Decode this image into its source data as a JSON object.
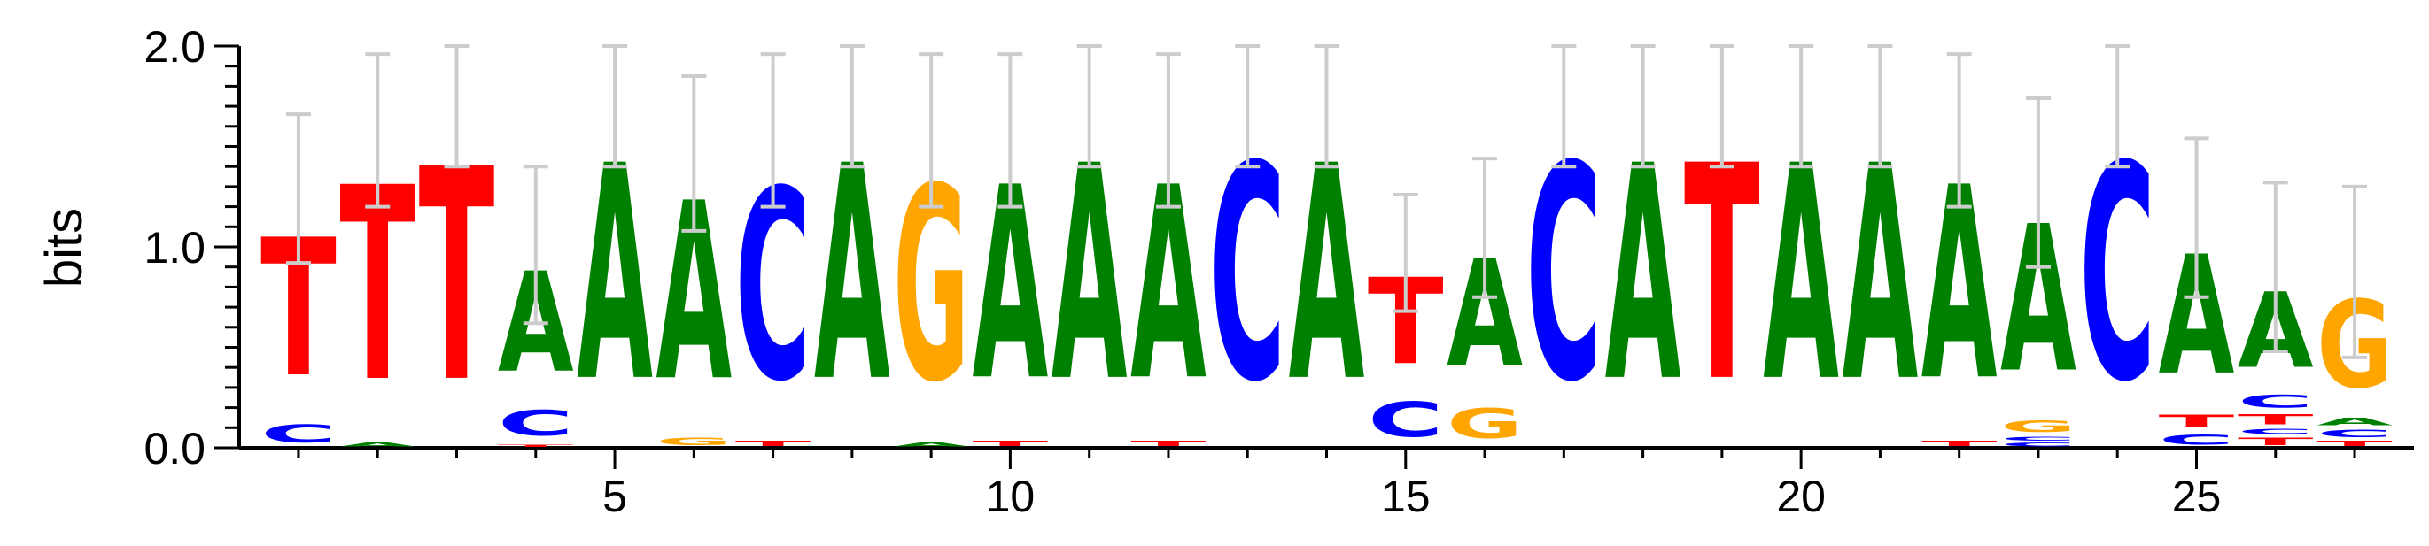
{
  "chart_data": {
    "type": "sequence-logo",
    "title": "",
    "xlabel": "",
    "ylabel": "bits",
    "ylim": [
      0,
      2.0
    ],
    "y_ticks": [
      "0.0",
      "1.0",
      "2.0"
    ],
    "x_ticks": [
      "5",
      "10",
      "15",
      "20",
      "25"
    ],
    "x_tick_values": [
      5,
      10,
      15,
      20,
      25
    ],
    "positions": 27,
    "grid": false,
    "colors": {
      "A": "#008000",
      "C": "#0000ff",
      "G": "#ffa500",
      "T": "#ff0000",
      "errorbar": "#cccccc"
    },
    "columns": [
      {
        "pos": 1,
        "stack": [
          [
            "C",
            0.14
          ],
          [
            "T",
            1.1
          ]
        ],
        "error": [
          0.92,
          1.66
        ]
      },
      {
        "pos": 2,
        "stack": [
          [
            "A",
            0.03
          ],
          [
            "T",
            1.55
          ]
        ],
        "error": [
          1.2,
          1.96
        ]
      },
      {
        "pos": 3,
        "stack": [
          [
            "T",
            1.7
          ]
        ],
        "error": [
          1.4,
          2.0
        ]
      },
      {
        "pos": 4,
        "stack": [
          [
            "T",
            0.02
          ],
          [
            "C",
            0.2
          ],
          [
            "A",
            0.8
          ]
        ],
        "error": [
          0.62,
          1.4
        ]
      },
      {
        "pos": 5,
        "stack": [
          [
            "A",
            1.72
          ]
        ],
        "error": [
          1.4,
          2.0
        ]
      },
      {
        "pos": 6,
        "stack": [
          [
            "G",
            0.06
          ],
          [
            "A",
            1.42
          ]
        ],
        "error": [
          1.08,
          1.85
        ]
      },
      {
        "pos": 7,
        "stack": [
          [
            "T",
            0.04
          ],
          [
            "C",
            1.52
          ]
        ],
        "error": [
          1.2,
          1.96
        ]
      },
      {
        "pos": 8,
        "stack": [
          [
            "A",
            1.72
          ]
        ],
        "error": [
          1.4,
          2.0
        ]
      },
      {
        "pos": 9,
        "stack": [
          [
            "A",
            0.03
          ],
          [
            "G",
            1.55
          ]
        ],
        "error": [
          1.2,
          1.96
        ]
      },
      {
        "pos": 10,
        "stack": [
          [
            "T",
            0.04
          ],
          [
            "A",
            1.54
          ]
        ],
        "error": [
          1.2,
          1.96
        ]
      },
      {
        "pos": 11,
        "stack": [
          [
            "A",
            1.72
          ]
        ],
        "error": [
          1.4,
          2.0
        ]
      },
      {
        "pos": 12,
        "stack": [
          [
            "T",
            0.04
          ],
          [
            "A",
            1.54
          ]
        ],
        "error": [
          1.2,
          1.96
        ]
      },
      {
        "pos": 13,
        "stack": [
          [
            "C",
            1.72
          ]
        ],
        "error": [
          1.4,
          2.0
        ]
      },
      {
        "pos": 14,
        "stack": [
          [
            "A",
            1.72
          ]
        ],
        "error": [
          1.4,
          2.0
        ]
      },
      {
        "pos": 15,
        "stack": [
          [
            "C",
            0.28
          ],
          [
            "T",
            0.69
          ]
        ],
        "error": [
          0.68,
          1.26
        ]
      },
      {
        "pos": 16,
        "stack": [
          [
            "G",
            0.24
          ],
          [
            "A",
            0.85
          ]
        ],
        "error": [
          0.75,
          1.44
        ]
      },
      {
        "pos": 17,
        "stack": [
          [
            "C",
            1.72
          ]
        ],
        "error": [
          1.4,
          2.0
        ]
      },
      {
        "pos": 18,
        "stack": [
          [
            "A",
            1.72
          ]
        ],
        "error": [
          1.4,
          2.0
        ]
      },
      {
        "pos": 19,
        "stack": [
          [
            "T",
            1.72
          ]
        ],
        "error": [
          1.4,
          2.0
        ]
      },
      {
        "pos": 20,
        "stack": [
          [
            "A",
            1.72
          ]
        ],
        "error": [
          1.4,
          2.0
        ]
      },
      {
        "pos": 21,
        "stack": [
          [
            "A",
            1.72
          ]
        ],
        "error": [
          1.4,
          2.0
        ]
      },
      {
        "pos": 22,
        "stack": [
          [
            "T",
            0.04
          ],
          [
            "A",
            1.54
          ]
        ],
        "error": [
          1.2,
          1.96
        ]
      },
      {
        "pos": 23,
        "stack": [
          [
            "C",
            0.03
          ],
          [
            "C",
            0.03
          ],
          [
            "G",
            0.09
          ],
          [
            "A",
            1.17
          ]
        ],
        "error": [
          0.9,
          1.74
        ]
      },
      {
        "pos": 24,
        "stack": [
          [
            "C",
            1.72
          ]
        ],
        "error": [
          1.4,
          2.0
        ]
      },
      {
        "pos": 25,
        "stack": [
          [
            "C",
            0.08
          ],
          [
            "T",
            0.1
          ],
          [
            "A",
            0.95
          ]
        ],
        "error": [
          0.75,
          1.54
        ]
      },
      {
        "pos": 26,
        "stack": [
          [
            "T",
            0.06
          ],
          [
            "C",
            0.04
          ],
          [
            "T",
            0.08
          ],
          [
            "C",
            0.1
          ],
          [
            "A",
            0.6
          ]
        ],
        "error": [
          0.48,
          1.32
        ]
      },
      {
        "pos": 27,
        "stack": [
          [
            "T",
            0.04
          ],
          [
            "C",
            0.06
          ],
          [
            "A",
            0.06
          ],
          [
            "G",
            0.7
          ]
        ],
        "error": [
          0.45,
          1.3
        ]
      }
    ]
  }
}
